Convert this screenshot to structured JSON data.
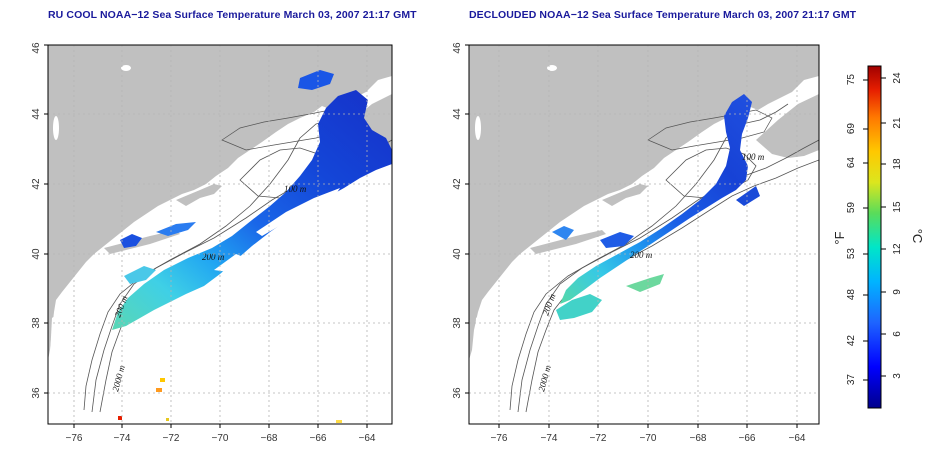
{
  "panels": [
    {
      "id": "left",
      "title": "RU COOL NOAA−12 Sea Surface Temperature March 03, 2007 21:17 GMT",
      "contour_labels": [
        "2000 m",
        "200 m",
        "100 m",
        "200 m"
      ]
    },
    {
      "id": "right",
      "title": "DECLOUDED NOAA−12 Sea Surface Temperature March 03, 2007 21:17 GMT",
      "contour_labels": [
        "2000 m",
        "200 m",
        "100 m",
        "200 m"
      ]
    }
  ],
  "axes": {
    "lon_ticks": [
      "−76",
      "−74",
      "−72",
      "−70",
      "−68",
      "−66",
      "−64"
    ],
    "lat_ticks": [
      "36",
      "38",
      "40",
      "42",
      "44",
      "46"
    ],
    "lon_range": [
      -77.0,
      -63.0
    ],
    "lat_range": [
      35.0,
      46.0
    ]
  },
  "colorbar": {
    "fahrenheit_labels": [
      "75",
      "69",
      "64",
      "59",
      "53",
      "48",
      "42",
      "37"
    ],
    "celsius_labels": [
      "24",
      "21",
      "18",
      "15",
      "12",
      "9",
      "6",
      "3"
    ],
    "unit_f": "°F",
    "unit_c": "°C",
    "colors": [
      "#00008c",
      "#0000ff",
      "#1e64ff",
      "#00b4ff",
      "#00e6c8",
      "#5adc5a",
      "#dce61e",
      "#ffc800",
      "#ff7800",
      "#e61e00",
      "#a00000"
    ]
  },
  "colors": {
    "land": "#c0c0c0",
    "ocean": "#ffffff",
    "grid": "#b4b4b4",
    "title": "#1a1a9c"
  }
}
